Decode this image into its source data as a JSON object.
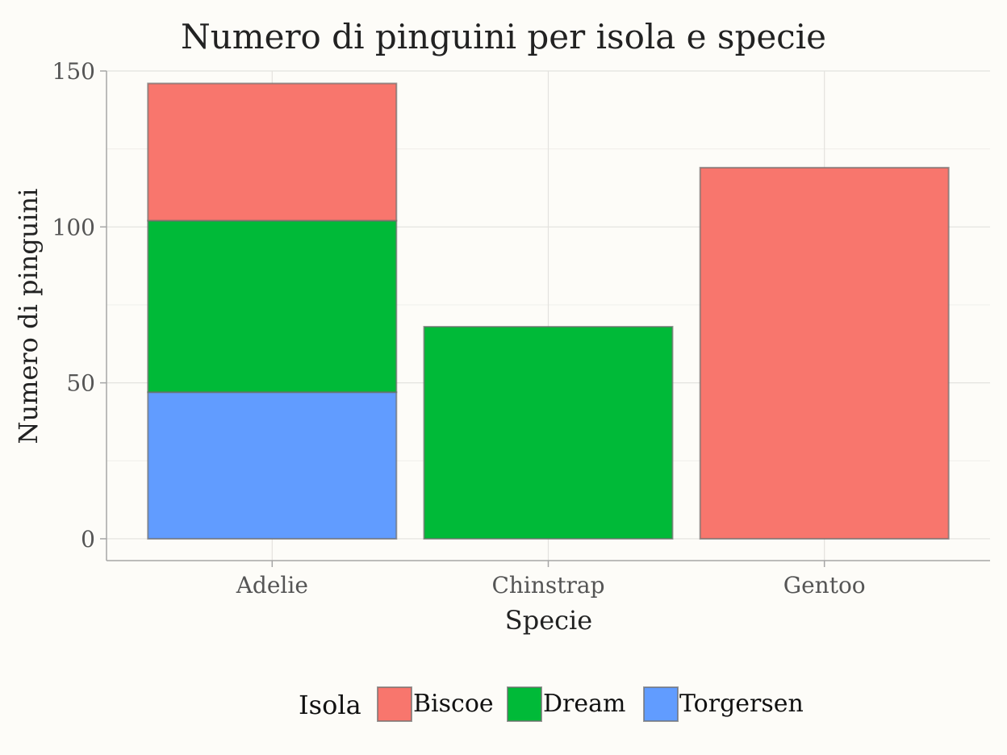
{
  "chart_data": {
    "type": "bar",
    "stacked": true,
    "title": "Numero di pinguini per isola e specie",
    "xlabel": "Specie",
    "ylabel": "Numero di pinguini",
    "categories": [
      "Adelie",
      "Chinstrap",
      "Gentoo"
    ],
    "series": [
      {
        "name": "Torgersen",
        "color": "#619cff",
        "values": [
          47,
          0,
          0
        ]
      },
      {
        "name": "Dream",
        "color": "#00ba38",
        "values": [
          55,
          68,
          0
        ]
      },
      {
        "name": "Biscoe",
        "color": "#f8766d",
        "values": [
          44,
          0,
          119
        ]
      }
    ],
    "ylim": [
      -7,
      150
    ],
    "yticks": [
      0,
      50,
      100,
      150
    ],
    "grid": true,
    "legend": {
      "title": "Isola",
      "position": "bottom",
      "order": [
        "Biscoe",
        "Dream",
        "Torgersen"
      ]
    }
  }
}
